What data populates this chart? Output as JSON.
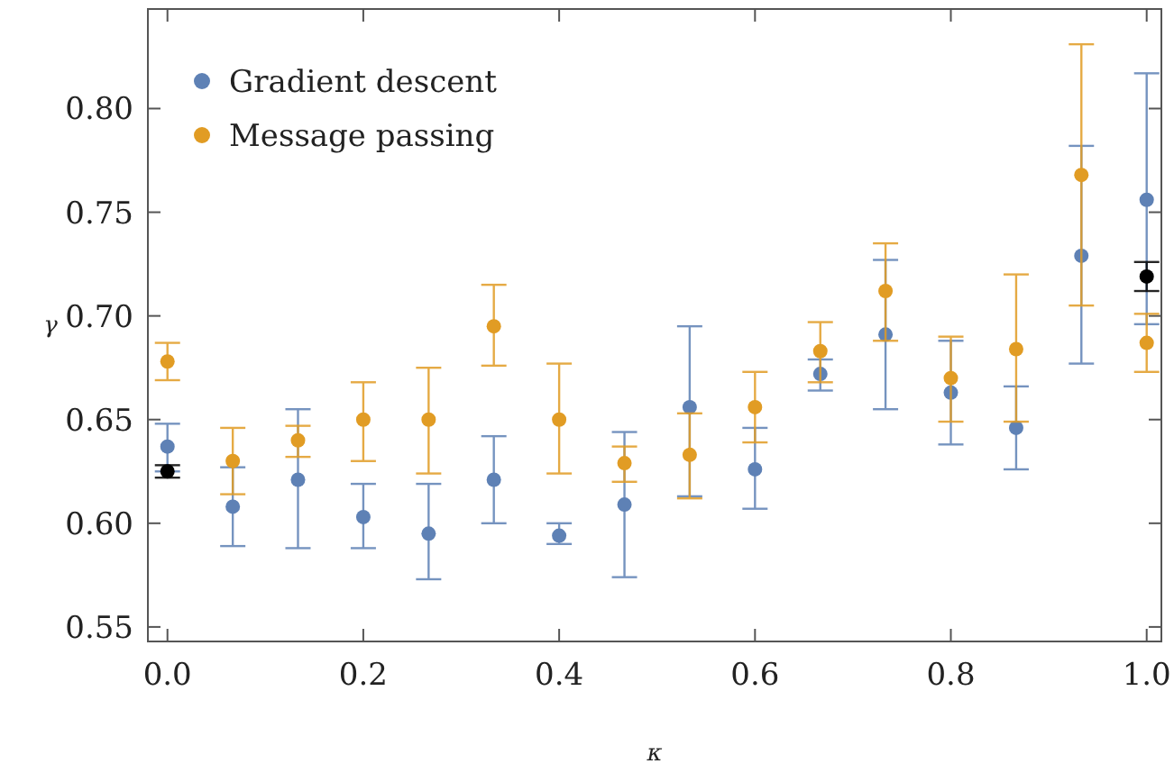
{
  "chart_data": {
    "type": "scatter",
    "xlabel": "κ",
    "ylabel": "γ",
    "xlim": [
      -0.02,
      1.015
    ],
    "ylim": [
      0.543,
      0.848
    ],
    "xticks": [
      {
        "value": 0,
        "label": "0.0"
      },
      {
        "value": 0.2,
        "label": "0.2"
      },
      {
        "value": 0.4,
        "label": "0.4"
      },
      {
        "value": 0.6,
        "label": "0.6"
      },
      {
        "value": 0.8,
        "label": "0.8"
      },
      {
        "value": 1,
        "label": "1.0"
      }
    ],
    "yticks": [
      0.55,
      {
        "value": 0.6,
        "label": "0.60"
      },
      0.65,
      {
        "value": 0.7,
        "label": "0.70"
      },
      0.75,
      {
        "value": 0.8,
        "label": "0.80"
      }
    ],
    "marker": "circle",
    "legend": "top left",
    "grid": false,
    "series": [
      {
        "name": "Gradient descent",
        "color": "#5e81b5",
        "x": [
          0,
          0.0667,
          0.1333,
          0.2,
          0.2667,
          0.3333,
          0.4,
          0.4667,
          0.5333,
          0.6,
          0.6667,
          0.7333,
          0.8,
          0.8667,
          0.9333,
          1
        ],
        "values": [
          0.637,
          0.608,
          0.621,
          0.603,
          0.595,
          0.621,
          0.594,
          0.609,
          0.656,
          0.626,
          0.672,
          0.691,
          0.663,
          0.646,
          0.729,
          0.756
        ],
        "errors": [
          [
            0.625,
            0.648
          ],
          [
            0.589,
            0.627
          ],
          [
            0.588,
            0.655
          ],
          [
            0.588,
            0.619
          ],
          [
            0.573,
            0.619
          ],
          [
            0.6,
            0.642
          ],
          [
            0.59,
            0.6
          ],
          [
            0.574,
            0.644
          ],
          [
            0.613,
            0.695
          ],
          [
            0.607,
            0.646
          ],
          [
            0.664,
            0.679
          ],
          [
            0.655,
            0.727
          ],
          [
            0.638,
            0.688
          ],
          [
            0.626,
            0.666
          ],
          [
            0.677,
            0.782
          ],
          [
            0.696,
            0.817
          ]
        ]
      },
      {
        "name": "Message passing",
        "color": "#e19c24",
        "x": [
          0,
          0.0667,
          0.1333,
          0.2,
          0.2667,
          0.3333,
          0.4,
          0.4667,
          0.5333,
          0.6,
          0.6667,
          0.7333,
          0.8,
          0.8667,
          0.9333,
          1
        ],
        "values": [
          0.678,
          0.63,
          0.64,
          0.65,
          0.65,
          0.695,
          0.65,
          0.629,
          0.633,
          0.656,
          0.683,
          0.712,
          0.67,
          0.684,
          0.768,
          0.687
        ],
        "errors": [
          [
            0.669,
            0.687
          ],
          [
            0.614,
            0.646
          ],
          [
            0.632,
            0.647
          ],
          [
            0.63,
            0.668
          ],
          [
            0.624,
            0.675
          ],
          [
            0.676,
            0.715
          ],
          [
            0.624,
            0.677
          ],
          [
            0.62,
            0.637
          ],
          [
            0.612,
            0.653
          ],
          [
            0.639,
            0.673
          ],
          [
            0.668,
            0.697
          ],
          [
            0.688,
            0.735
          ],
          [
            0.649,
            0.69
          ],
          [
            0.649,
            0.72
          ],
          [
            0.705,
            0.831
          ],
          [
            0.673,
            0.701
          ]
        ]
      },
      {
        "color": "#000000",
        "x": [
          0,
          1
        ],
        "values": [
          0.625,
          0.719
        ],
        "errors": [
          [
            0.622,
            0.628
          ],
          [
            0.712,
            0.726
          ]
        ]
      }
    ]
  }
}
